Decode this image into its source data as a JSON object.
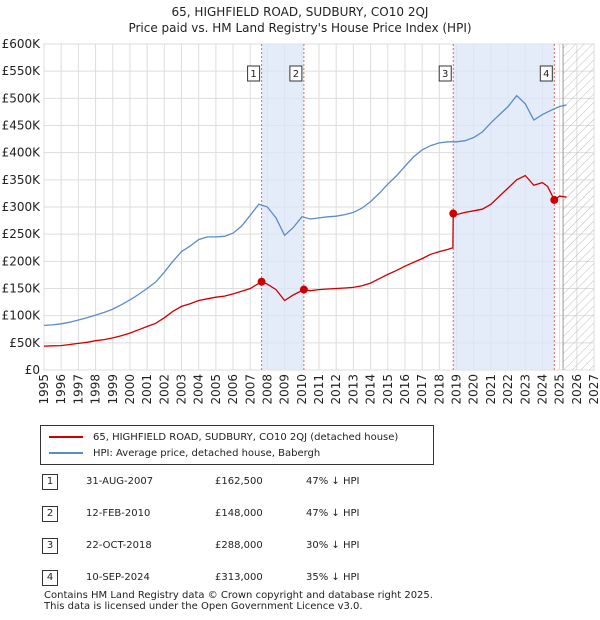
{
  "chart_data": {
    "type": "line",
    "title": "65, HIGHFIELD ROAD, SUDBURY, CO10 2QJ",
    "subtitle": "Price paid vs. HM Land Registry's House Price Index (HPI)",
    "xlabel": "",
    "ylabel": "",
    "xlim": [
      1995,
      2027
    ],
    "ylim": [
      0,
      600000
    ],
    "y_ticks": [
      0,
      50000,
      100000,
      150000,
      200000,
      250000,
      300000,
      350000,
      400000,
      450000,
      500000,
      550000,
      600000
    ],
    "y_tick_labels": [
      "£0",
      "£50K",
      "£100K",
      "£150K",
      "£200K",
      "£250K",
      "£300K",
      "£350K",
      "£400K",
      "£450K",
      "£500K",
      "£550K",
      "£600K"
    ],
    "x_ticks": [
      1995,
      1996,
      1997,
      1998,
      1999,
      2000,
      2001,
      2002,
      2003,
      2004,
      2005,
      2006,
      2007,
      2008,
      2009,
      2010,
      2011,
      2012,
      2013,
      2014,
      2015,
      2016,
      2017,
      2018,
      2019,
      2020,
      2021,
      2022,
      2023,
      2024,
      2025,
      2026,
      2027
    ],
    "x_tick_labels": [
      "1995",
      "1996",
      "1997",
      "1998",
      "1999",
      "2000",
      "2001",
      "2002",
      "2003",
      "2004",
      "2005",
      "2006",
      "2007",
      "2008",
      "2009",
      "2010",
      "2011",
      "2012",
      "2013",
      "2014",
      "2015",
      "2016",
      "2017",
      "2018",
      "2019",
      "2020",
      "2021",
      "2022",
      "2023",
      "2024",
      "2025",
      "2026",
      "2027"
    ],
    "grid": true,
    "shaded_ranges": [
      [
        2007.66,
        2010.12
      ],
      [
        2018.81,
        2024.69
      ]
    ],
    "forecast_from": 2025.2,
    "series": [
      {
        "name": "65, HIGHFIELD ROAD, SUDBURY, CO10 2QJ (detached house)",
        "color": "#cc0000",
        "x": [
          1995.0,
          1995.5,
          1996.0,
          1996.5,
          1997.0,
          1997.5,
          1998.0,
          1998.5,
          1999.0,
          1999.5,
          2000.0,
          2000.5,
          2001.0,
          2001.5,
          2002.0,
          2002.5,
          2003.0,
          2003.5,
          2004.0,
          2004.5,
          2005.0,
          2005.5,
          2006.0,
          2006.5,
          2007.0,
          2007.66,
          2008.0,
          2008.5,
          2009.0,
          2009.5,
          2010.12,
          2010.5,
          2011.0,
          2011.5,
          2012.0,
          2012.5,
          2013.0,
          2013.5,
          2014.0,
          2014.5,
          2015.0,
          2015.5,
          2016.0,
          2016.5,
          2017.0,
          2017.5,
          2018.0,
          2018.5,
          2018.79,
          2018.81,
          2019.0,
          2019.5,
          2020.0,
          2020.5,
          2021.0,
          2021.5,
          2022.0,
          2022.5,
          2023.0,
          2023.5,
          2024.0,
          2024.3,
          2024.69,
          2025.0,
          2025.4
        ],
        "values": [
          44000,
          44500,
          45000,
          47000,
          49000,
          51000,
          54000,
          56000,
          59000,
          63000,
          68000,
          74000,
          80000,
          86000,
          96000,
          108000,
          117000,
          122000,
          128000,
          131000,
          134000,
          136000,
          140000,
          145000,
          150000,
          162500,
          158000,
          148000,
          128000,
          138000,
          148000,
          146000,
          148000,
          149000,
          150000,
          151000,
          152000,
          155000,
          160000,
          168000,
          176000,
          183000,
          191000,
          198000,
          205000,
          213000,
          218000,
          222000,
          225000,
          288000,
          286000,
          290000,
          293000,
          296000,
          305000,
          320000,
          335000,
          350000,
          358000,
          340000,
          345000,
          338000,
          313000,
          320000,
          318000
        ]
      },
      {
        "name": "HPI: Average price, detached house, Babergh",
        "color": "#5b8cc8",
        "x": [
          1995.0,
          1995.5,
          1996.0,
          1996.5,
          1997.0,
          1997.5,
          1998.0,
          1998.5,
          1999.0,
          1999.5,
          2000.0,
          2000.5,
          2001.0,
          2001.5,
          2002.0,
          2002.5,
          2003.0,
          2003.5,
          2004.0,
          2004.5,
          2005.0,
          2005.5,
          2006.0,
          2006.5,
          2007.0,
          2007.5,
          2008.0,
          2008.5,
          2009.0,
          2009.5,
          2010.0,
          2010.5,
          2011.0,
          2011.5,
          2012.0,
          2012.5,
          2013.0,
          2013.5,
          2014.0,
          2014.5,
          2015.0,
          2015.5,
          2016.0,
          2016.5,
          2017.0,
          2017.5,
          2018.0,
          2018.5,
          2019.0,
          2019.5,
          2020.0,
          2020.5,
          2021.0,
          2021.5,
          2022.0,
          2022.5,
          2023.0,
          2023.5,
          2024.0,
          2024.5,
          2025.0,
          2025.4
        ],
        "values": [
          82000,
          83000,
          85000,
          88000,
          92000,
          96000,
          101000,
          106000,
          112000,
          120000,
          129000,
          139000,
          150000,
          162000,
          180000,
          200000,
          218000,
          228000,
          240000,
          245000,
          245000,
          246000,
          252000,
          265000,
          285000,
          305000,
          300000,
          280000,
          248000,
          262000,
          282000,
          278000,
          280000,
          282000,
          283000,
          286000,
          290000,
          298000,
          310000,
          325000,
          342000,
          357000,
          375000,
          392000,
          405000,
          413000,
          418000,
          420000,
          420000,
          422000,
          428000,
          438000,
          455000,
          470000,
          485000,
          505000,
          490000,
          460000,
          470000,
          478000,
          485000,
          488000
        ]
      }
    ],
    "markers": [
      {
        "label": "1",
        "x": 2007.66,
        "y": 162500
      },
      {
        "label": "2",
        "x": 2010.12,
        "y": 148000
      },
      {
        "label": "3",
        "x": 2018.81,
        "y": 288000
      },
      {
        "label": "4",
        "x": 2024.69,
        "y": 313000
      }
    ]
  },
  "legend": {
    "property_label": "65, HIGHFIELD ROAD, SUDBURY, CO10 2QJ (detached house)",
    "hpi_label": "HPI: Average price, detached house, Babergh",
    "property_color": "#cc0000",
    "hpi_color": "#5b8cc8"
  },
  "sales": [
    {
      "num": "1",
      "date": "31-AUG-2007",
      "price": "£162,500",
      "hpi": "47% ↓ HPI"
    },
    {
      "num": "2",
      "date": "12-FEB-2010",
      "price": "£148,000",
      "hpi": "47% ↓ HPI"
    },
    {
      "num": "3",
      "date": "22-OCT-2018",
      "price": "£288,000",
      "hpi": "30% ↓ HPI"
    },
    {
      "num": "4",
      "date": "10-SEP-2024",
      "price": "£313,000",
      "hpi": "35% ↓ HPI"
    }
  ],
  "footer": {
    "line1": "Contains HM Land Registry data © Crown copyright and database right 2025.",
    "line2": "This data is licensed under the Open Government Licence v3.0."
  }
}
